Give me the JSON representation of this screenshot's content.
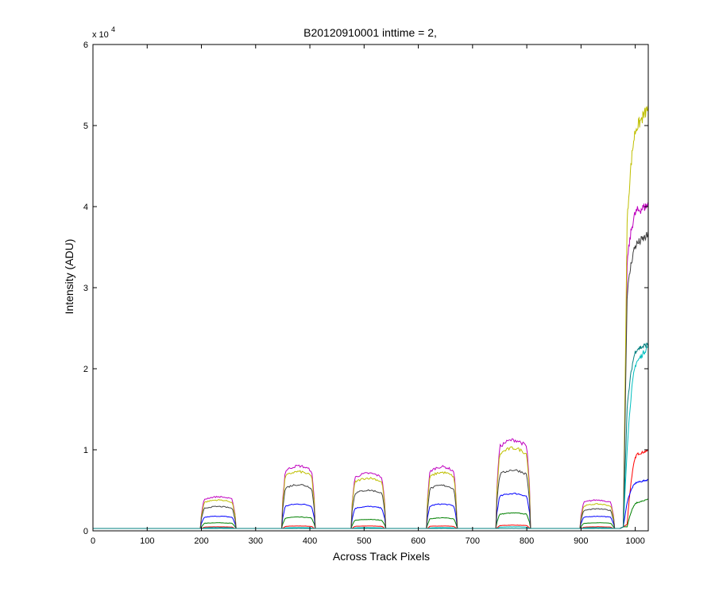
{
  "chart_data": {
    "type": "line",
    "title": "B20120910001 inttime = 2,",
    "xlabel": "Across Track Pixels",
    "ylabel": "Intensity (ADU)",
    "y_exponent_label": "x 10",
    "y_exponent_power": "4",
    "xlim": [
      0,
      1024
    ],
    "ylim": [
      0,
      6
    ],
    "xticks": [
      0,
      100,
      200,
      300,
      400,
      500,
      600,
      700,
      800,
      900,
      1000
    ],
    "yticks": [
      0,
      1,
      2,
      3,
      4,
      5,
      6
    ],
    "grid": false,
    "legend": "none",
    "baseline": 0.03,
    "segments": [
      {
        "x0": 200,
        "x1": 262
      },
      {
        "x0": 350,
        "x1": 408
      },
      {
        "x0": 478,
        "x1": 538
      },
      {
        "x0": 617,
        "x1": 670
      },
      {
        "x0": 745,
        "x1": 805
      },
      {
        "x0": 900,
        "x1": 960
      }
    ],
    "series": [
      {
        "color": "#ff0000",
        "levels": [
          0.05,
          0.06,
          0.06,
          0.06,
          0.07,
          0.05
        ],
        "right": [
          0.05,
          0.08,
          0.95,
          0.99
        ]
      },
      {
        "color": "#008000",
        "levels": [
          0.1,
          0.17,
          0.14,
          0.16,
          0.22,
          0.1
        ],
        "right": [
          0.05,
          0.05,
          0.35,
          0.39
        ]
      },
      {
        "color": "#0000ff",
        "levels": [
          0.18,
          0.33,
          0.3,
          0.33,
          0.46,
          0.18
        ],
        "right": [
          0.05,
          0.35,
          0.6,
          0.63
        ]
      },
      {
        "color": "#00bfbf",
        "levels": [
          0.04,
          0.04,
          0.04,
          0.04,
          0.05,
          0.04
        ],
        "right": [
          0.05,
          1.0,
          2.1,
          2.28
        ]
      },
      {
        "color": "#bf00bf",
        "levels": [
          0.42,
          0.8,
          0.71,
          0.79,
          1.12,
          0.38
        ],
        "right": [
          0.05,
          3.3,
          3.95,
          4.02
        ]
      },
      {
        "color": "#bfbf00",
        "levels": [
          0.38,
          0.73,
          0.65,
          0.72,
          1.02,
          0.33
        ],
        "right": [
          0.05,
          3.8,
          5.0,
          5.22
        ]
      },
      {
        "color": "#404040",
        "levels": [
          0.3,
          0.57,
          0.5,
          0.56,
          0.75,
          0.27
        ],
        "right": [
          0.05,
          2.9,
          3.55,
          3.65
        ]
      },
      {
        "color": "#008080",
        "levels": [
          0.03,
          0.03,
          0.03,
          0.03,
          0.03,
          0.03
        ],
        "right": [
          0.05,
          1.5,
          2.25,
          2.3
        ]
      }
    ]
  }
}
